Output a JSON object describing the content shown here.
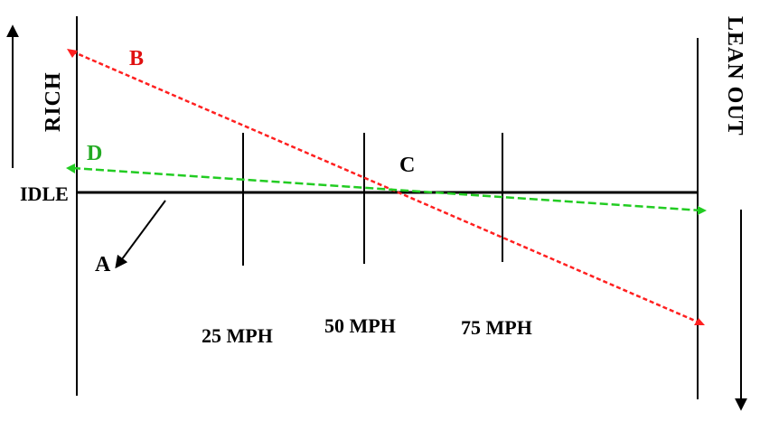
{
  "labels": {
    "rich": "RICH",
    "lean_out": "LEAN OUT",
    "idle": "IDLE",
    "a": "A",
    "b": "B",
    "c": "C",
    "d": "D"
  },
  "speeds": [
    "25 MPH",
    "50 MPH",
    "75 MPH"
  ],
  "colors": {
    "axis": "#000000",
    "line_b": "#ff2020",
    "line_d": "#22cc22",
    "label_b": "#e01010",
    "label_d": "#22aa22",
    "label_c": "#000000"
  }
}
